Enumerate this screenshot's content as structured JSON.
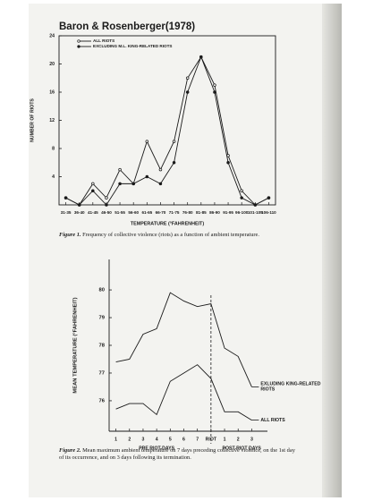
{
  "title": "Baron & Rosenberger(1978)",
  "chart_data": [
    {
      "type": "line",
      "caption": "Figure 1. Frequency of collective violence (riots) as a function of ambient temperature.",
      "y_label": "NUMBER OF RIOTS",
      "x_label": "TEMPERATURE (°FAHRENHEIT)",
      "categories": [
        "31-35",
        "36-40",
        "41-45",
        "46-50",
        "51-55",
        "56-60",
        "61-65",
        "66-70",
        "71-75",
        "76-80",
        "81-85",
        "86-90",
        "91-95",
        "96-100",
        "101-105",
        "106-110"
      ],
      "series": [
        {
          "name": "ALL RIOTS",
          "color": "#1a1a1a",
          "marker": "open",
          "values": [
            1,
            0,
            3,
            1,
            5,
            3,
            9,
            5,
            9,
            18,
            21,
            17,
            7,
            2,
            0,
            1
          ]
        },
        {
          "name": "EXCLUDING M.L. KING-RELATED RIOTS",
          "color": "#1a1a1a",
          "marker": "filled",
          "values": [
            1,
            0,
            2,
            0,
            3,
            3,
            4,
            3,
            6,
            16,
            21,
            16,
            6,
            1,
            0,
            1
          ]
        }
      ],
      "ylim": [
        0,
        24
      ],
      "yticks": [
        4,
        8,
        12,
        16,
        20,
        24
      ],
      "legend": "upper left"
    },
    {
      "type": "line",
      "caption": "Figure 2. Mean maximum ambient temperature on 7 days preceding collective violence, on the 1st day of its occurrence, and on 3 days following its termination.",
      "y_label": "MEAN TEMPERATURE (°FAHRENHEIT)",
      "categories": [
        "1",
        "2",
        "3",
        "4",
        "5",
        "6",
        "7",
        "RIOT",
        "1",
        "2",
        "3"
      ],
      "x_groups": [
        "PRE RIOT-DAYS",
        "POST-RIOT DAYS"
      ],
      "series": [
        {
          "name": "EXLUDING KING-RELATED RIOTS",
          "color": "#1a1a1a",
          "values": [
            77.4,
            77.5,
            78.4,
            78.6,
            79.9,
            79.6,
            79.4,
            79.5,
            77.9,
            77.6,
            76.5
          ]
        },
        {
          "name": "ALL RIOTS",
          "color": "#1a1a1a",
          "values": [
            75.7,
            75.9,
            75.9,
            75.5,
            76.7,
            77.0,
            77.3,
            76.8,
            75.6,
            75.6,
            75.3
          ]
        }
      ],
      "ylim": [
        74.9,
        81.1
      ],
      "yticks": [
        76,
        77,
        78,
        79,
        80
      ],
      "legend": "line ends"
    }
  ]
}
